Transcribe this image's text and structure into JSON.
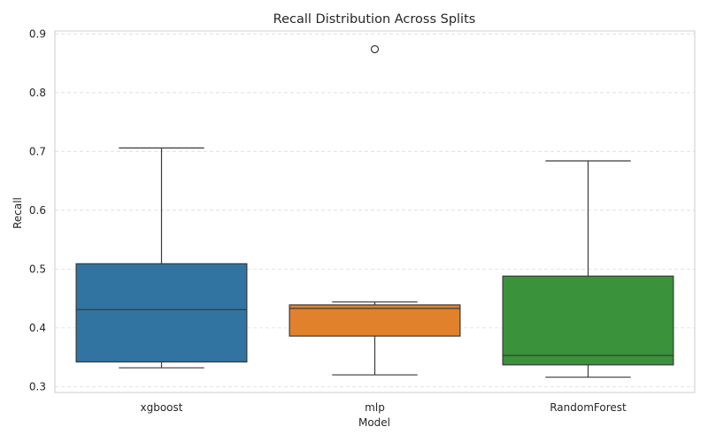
{
  "chart_data": {
    "type": "box",
    "title": "Recall Distribution Across Splits",
    "xlabel": "Model",
    "ylabel": "Recall",
    "ylim": [
      0.29,
      0.905
    ],
    "yticks": [
      0.3,
      0.4,
      0.5,
      0.6,
      0.7,
      0.8,
      0.9
    ],
    "grid": true,
    "categories": [
      "xgboost",
      "mlp",
      "RandomForest"
    ],
    "boxes": [
      {
        "name": "xgboost",
        "color": "#3274a1",
        "whisker_low": 0.332,
        "q1": 0.342,
        "median": 0.431,
        "q3": 0.509,
        "whisker_high": 0.706,
        "fliers": []
      },
      {
        "name": "mlp",
        "color": "#e1812c",
        "whisker_low": 0.32,
        "q1": 0.386,
        "median": 0.433,
        "q3": 0.439,
        "whisker_high": 0.444,
        "fliers": [
          0.874
        ]
      },
      {
        "name": "RandomForest",
        "color": "#3a923a",
        "whisker_low": 0.316,
        "q1": 0.337,
        "median": 0.353,
        "q3": 0.488,
        "whisker_high": 0.684,
        "fliers": []
      }
    ]
  }
}
